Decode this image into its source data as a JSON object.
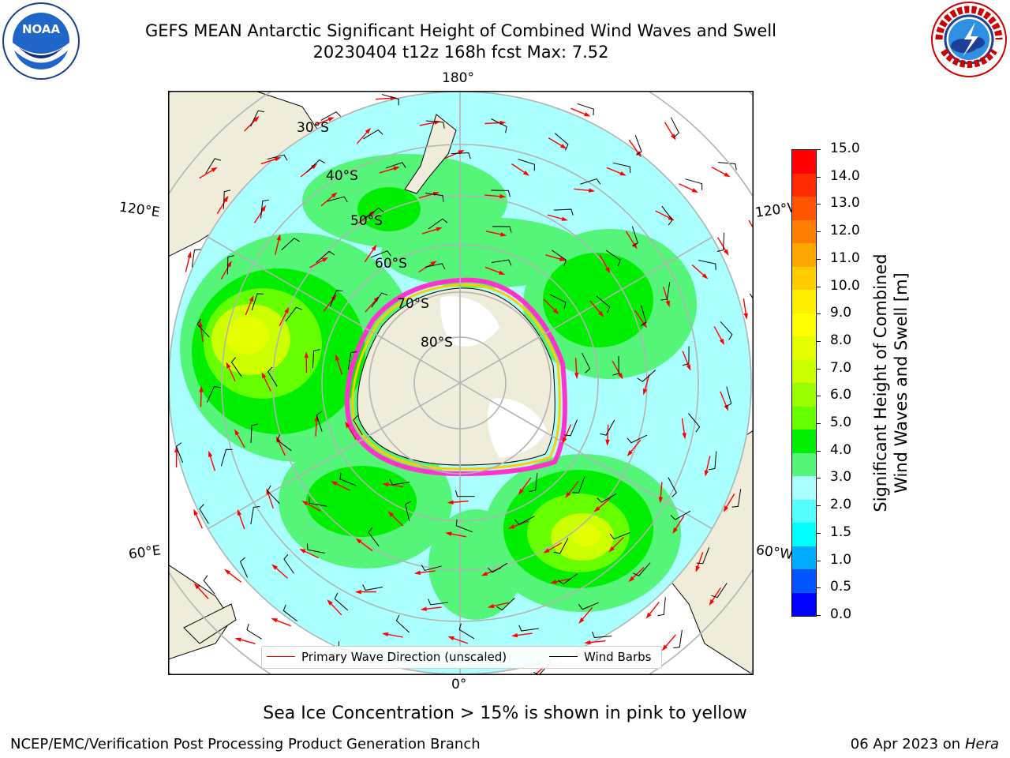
{
  "title": {
    "line1": "GEFS MEAN Antarctic Significant Height of Combined Wind Waves and Swell",
    "line2": "20230404 t12z 168h fcst   Max: 7.52"
  },
  "logos": {
    "left": {
      "name": "noaa-logo",
      "text": "NOAA"
    },
    "right": {
      "name": "nws-logo",
      "text": "NATIONAL WEATHER SERVICE"
    }
  },
  "map": {
    "projection": "south-polar-stereographic",
    "longitude_labels": {
      "top": "180°",
      "bottom": "0°",
      "upper_left": "120°E",
      "upper_right": "120°W",
      "lower_left": "60°E",
      "lower_right": "60°W"
    },
    "latitude_labels": [
      "30°S",
      "40°S",
      "50°S",
      "60°S",
      "70°S",
      "80°S"
    ],
    "colors": {
      "land": "#efecda",
      "ocean_fill": "#ffffff",
      "graticule": "#b3b3b3",
      "sea_ice_pink": "#ff33cc",
      "sea_ice_yellow": "#ffcc00",
      "arrow": "#ff0000",
      "barb": "#000000"
    }
  },
  "colorbar": {
    "label_line1": "Significant Height of Combined",
    "label_line2": "Wind Waves and Swell [m]",
    "ticks": [
      "15.0",
      "14.0",
      "13.0",
      "12.0",
      "11.0",
      "10.0",
      "9.0",
      "8.0",
      "7.0",
      "6.0",
      "5.0",
      "4.0",
      "3.0",
      "2.0",
      "1.5",
      "1.0",
      "0.5",
      "0.0"
    ],
    "colors_top_to_bottom": [
      "#ff0000",
      "#ff2a00",
      "#ff5500",
      "#ff8000",
      "#ffa600",
      "#ffcc00",
      "#ffee00",
      "#ffff00",
      "#e5ff00",
      "#ccff00",
      "#99ff00",
      "#66ff00",
      "#00ee00",
      "#55f57a",
      "#aaffff",
      "#55ffff",
      "#00ffff",
      "#00aaff",
      "#0055ff",
      "#0000ff"
    ]
  },
  "legend": {
    "wave_direction": "Primary Wave Direction (unscaled)",
    "wind_barbs": "Wind Barbs"
  },
  "caption": "Sea Ice Concentration > 15% is shown in pink to yellow",
  "credit": "NCEP/EMC/Verification Post Processing Product Generation Branch",
  "date_stamp": {
    "date": "06 Apr 2023 on ",
    "machine": "Hera"
  }
}
